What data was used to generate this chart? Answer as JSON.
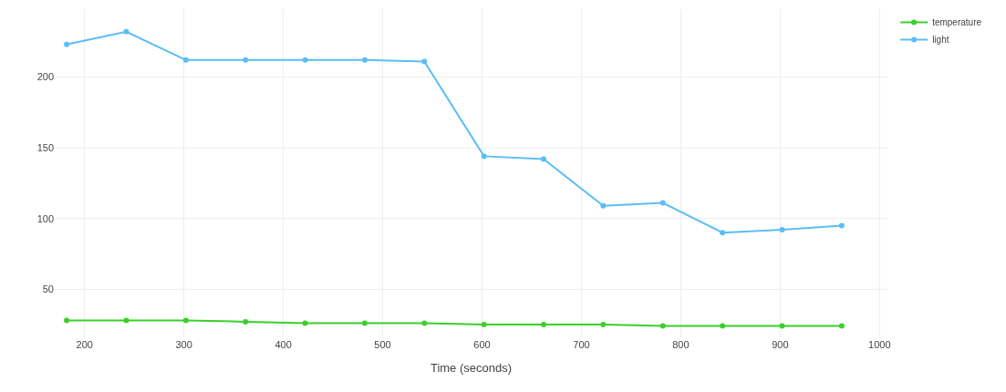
{
  "chart_data": {
    "type": "line",
    "xlabel": "Time (seconds)",
    "x": [
      182,
      242,
      302,
      362,
      422,
      482,
      542,
      602,
      662,
      722,
      782,
      842,
      902,
      962
    ],
    "series": [
      {
        "name": "temperature",
        "color": "#3ccf2a",
        "values": [
          28,
          28,
          28,
          27,
          26,
          26,
          26,
          25,
          25,
          25,
          24,
          24,
          24,
          24
        ]
      },
      {
        "name": "light",
        "color": "#5bbdf5",
        "values": [
          223,
          232,
          212,
          212,
          212,
          212,
          211,
          144,
          142,
          109,
          111,
          90,
          92,
          95
        ]
      }
    ],
    "xlim": [
      170,
      1008
    ],
    "ylim": [
      16,
      248
    ],
    "xticks": [
      200,
      300,
      400,
      500,
      600,
      700,
      800,
      900,
      1000
    ],
    "yticks": [
      50,
      100,
      150,
      200
    ],
    "grid": true,
    "legend": "top right",
    "marker": "circle",
    "line_style": "solid"
  }
}
